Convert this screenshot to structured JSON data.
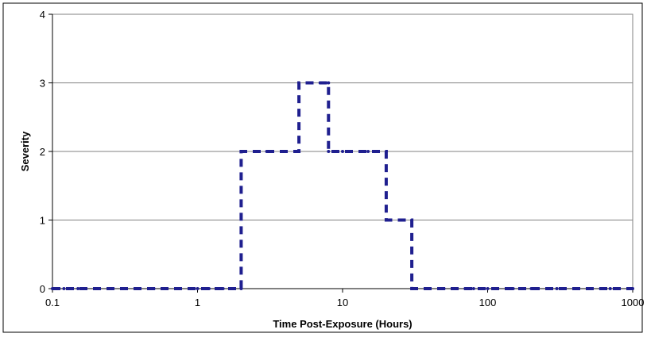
{
  "chart_data": {
    "type": "line",
    "title": "",
    "xlabel": "Time Post-Exposure (Hours)",
    "ylabel": "Severity",
    "x_scale": "log",
    "xlim": [
      0.1,
      1000
    ],
    "ylim": [
      0,
      4
    ],
    "x_ticks": [
      0.1,
      1,
      10,
      100,
      1000
    ],
    "x_tick_labels": [
      "0.1",
      "1",
      "10",
      "100",
      "1000"
    ],
    "y_ticks": [
      0,
      1,
      2,
      3,
      4
    ],
    "y_tick_labels": [
      "0",
      "1",
      "2",
      "3",
      "4"
    ],
    "grid": "horizontal",
    "legend": "none",
    "line_style": "dashed",
    "line_color": "#1f1f8f",
    "series": [
      {
        "x": [
          0.1,
          0.12,
          0.15,
          0.2,
          0.25,
          0.3,
          0.4,
          0.5,
          0.6,
          0.75,
          1,
          1.2,
          1.5,
          2,
          2,
          2.5,
          3,
          4,
          5,
          5,
          6,
          7,
          8,
          8,
          10,
          15,
          20,
          20,
          25,
          30,
          30,
          40,
          50,
          60,
          70,
          80,
          100,
          150,
          200,
          300,
          400,
          500,
          600,
          700,
          800,
          1000
        ],
        "y": [
          0,
          0,
          0,
          0,
          0,
          0,
          0,
          0,
          0,
          0,
          0,
          0,
          0,
          0,
          2,
          2,
          2,
          2,
          2,
          3,
          3,
          3,
          3,
          2,
          2,
          2,
          2,
          1,
          1,
          1,
          0,
          0,
          0,
          0,
          0,
          0,
          0,
          0,
          0,
          0,
          0,
          0,
          0,
          0,
          0,
          0
        ]
      }
    ]
  }
}
